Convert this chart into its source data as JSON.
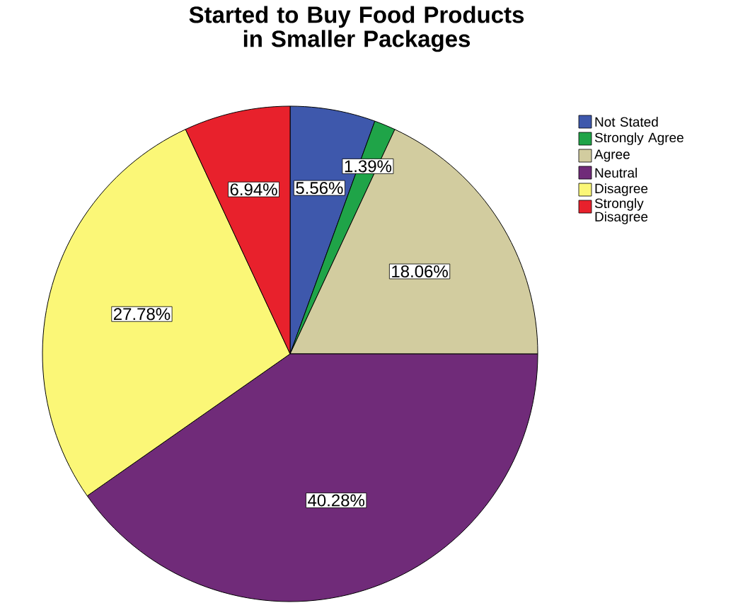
{
  "chart_data": {
    "type": "pie",
    "title": "Started to Buy Food Products in Smaller Packages",
    "categories": [
      "Not Stated",
      "Strongly Agree",
      "Agree",
      "Neutral",
      "Disagree",
      "Strongly Disagree"
    ],
    "values": [
      5.56,
      1.39,
      18.06,
      40.28,
      27.78,
      6.94
    ],
    "value_labels": [
      "5.56%",
      "1.39%",
      "18.06%",
      "40.28%",
      "27.78%",
      "6.94%"
    ],
    "colors": [
      "#3e58ac",
      "#1fa448",
      "#d2cc9f",
      "#702b79",
      "#fbf777",
      "#e8212c"
    ],
    "legend": "right"
  }
}
